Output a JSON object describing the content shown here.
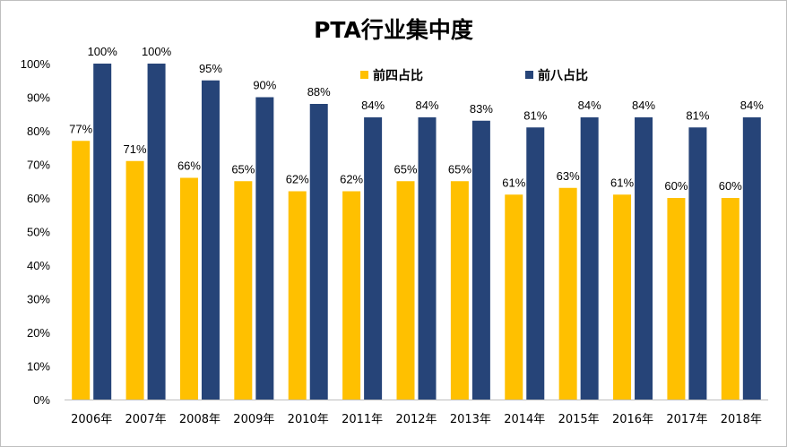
{
  "chart_data": {
    "type": "bar",
    "title": "PTA行业集中度",
    "categories": [
      "2006年",
      "2007年",
      "2008年",
      "2009年",
      "2010年",
      "2011年",
      "2012年",
      "2013年",
      "2014年",
      "2015年",
      "2016年",
      "2017年",
      "2018年"
    ],
    "series": [
      {
        "name": "前四占比",
        "color": "#FFC000",
        "values": [
          77,
          71,
          66,
          65,
          62,
          62,
          65,
          65,
          61,
          63,
          61,
          60,
          60
        ],
        "labels": [
          "77%",
          "71%",
          "66%",
          "65%",
          "62%",
          "62%",
          "65%",
          "65%",
          "61%",
          "63%",
          "61%",
          "60%",
          "60%"
        ]
      },
      {
        "name": "前八占比",
        "color": "#264478",
        "values": [
          100,
          100,
          95,
          90,
          88,
          84,
          84,
          83,
          81,
          84,
          84,
          81,
          84
        ],
        "labels": [
          "100%",
          "100%",
          "95%",
          "90%",
          "88%",
          "84%",
          "84%",
          "83%",
          "81%",
          "84%",
          "84%",
          "81%",
          "84%"
        ]
      }
    ],
    "ylim": [
      0,
      100
    ],
    "yticks": [
      0,
      10,
      20,
      30,
      40,
      50,
      60,
      70,
      80,
      90,
      100
    ],
    "ytick_labels": [
      "0%",
      "10%",
      "20%",
      "30%",
      "40%",
      "50%",
      "60%",
      "70%",
      "80%",
      "90%",
      "100%"
    ],
    "grid": false,
    "legend_position": "top-right"
  }
}
